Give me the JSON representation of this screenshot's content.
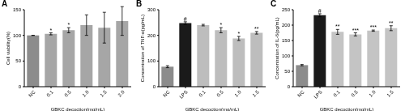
{
  "chart_data": [
    {
      "type": "bar",
      "title": "A",
      "y_label": "Cell viability(%)",
      "x_label": "GBKC decoction(mg/mL)",
      "categories": [
        "NC",
        "0.1",
        "0.5",
        "1.0",
        "1.5",
        "2.0"
      ],
      "values": [
        100,
        103,
        110,
        120,
        115,
        128
      ],
      "errors": [
        0,
        2,
        5,
        20,
        30,
        28
      ],
      "significance": [
        null,
        "*",
        "*",
        null,
        null,
        null
      ],
      "colors": [
        "#8c8c8c",
        "#a6a6a6",
        "#a6a6a6",
        "#a6a6a6",
        "#a6a6a6",
        "#a6a6a6"
      ],
      "ylim": [
        0,
        150
      ],
      "yticks": [
        0,
        50,
        100,
        150
      ],
      "grid": false
    },
    {
      "type": "bar",
      "title": "B",
      "y_label": "Concentration of TNF-α(pg/mL)",
      "x_label": "GBKC decoction(mg/mL)",
      "categories": [
        "NC",
        "LPS",
        "0.1",
        "0.5",
        "1.0",
        "1.5"
      ],
      "values": [
        78,
        248,
        240,
        220,
        188,
        210
      ],
      "errors": [
        4,
        5,
        3,
        10,
        8,
        5
      ],
      "significance": [
        null,
        "#",
        null,
        "*",
        "*",
        "**"
      ],
      "colors": [
        "#8c8c8c",
        "#1a1a1a",
        "#bdbdbd",
        "#bdbdbd",
        "#bdbdbd",
        "#bdbdbd"
      ],
      "ylim": [
        0,
        300
      ],
      "yticks": [
        0,
        100,
        200,
        300
      ],
      "grid": false
    },
    {
      "type": "bar",
      "title": "C",
      "y_label": "Concentration of IL-6(pg/mL)",
      "x_label": "GBKC decoction(mg/mL)",
      "categories": [
        "NC",
        "LPS",
        "0.1",
        "0.5",
        "1.0",
        "1.5"
      ],
      "values": [
        70,
        232,
        178,
        170,
        182,
        190
      ],
      "errors": [
        2,
        5,
        8,
        5,
        2,
        8
      ],
      "significance": [
        null,
        "#",
        "**",
        "***",
        "***",
        "**"
      ],
      "colors": [
        "#8c8c8c",
        "#1a1a1a",
        "#c4c4c4",
        "#c4c4c4",
        "#c4c4c4",
        "#c4c4c4"
      ],
      "ylim": [
        0,
        250
      ],
      "yticks": [
        0,
        50,
        100,
        150,
        200,
        250
      ],
      "grid": false
    }
  ]
}
